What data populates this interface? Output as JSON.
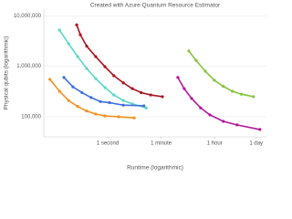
{
  "chart_data": {
    "type": "line",
    "title": "Created with Azure Quantum Resource Estimator",
    "x_label": "Runtime (logarithmic)",
    "y_label": "Physical qubits (logarithmic)",
    "x_scale": "log",
    "y_scale": "log",
    "xlim": [
      0.0075,
      190000
    ],
    "ylim": [
      40000,
      13500000
    ],
    "xticks": [
      {
        "value": 1,
        "label": "1 second"
      },
      {
        "value": 60,
        "label": "1 minute"
      },
      {
        "value": 3600,
        "label": "1 hour"
      },
      {
        "value": 86400,
        "label": "1 day"
      }
    ],
    "yticks": [
      {
        "value": 100000,
        "label": "100,000"
      },
      {
        "value": 1000000,
        "label": "1,000,000"
      },
      {
        "value": 10000000,
        "label": "10,000,000"
      }
    ],
    "grid": true,
    "series": [
      {
        "color": "#a8141e",
        "x": [
          0.093,
          0.123,
          0.2,
          0.4,
          0.81,
          1.6,
          3.3,
          6.6,
          13,
          27,
          66
        ],
        "values": [
          6600000,
          4200000,
          2500000,
          1550000,
          980000,
          650000,
          470000,
          360000,
          300000,
          270000,
          250000
        ]
      },
      {
        "color": "#5ad8c6",
        "x": [
          0.025,
          0.05,
          0.1,
          0.2,
          0.4,
          0.81,
          1.6,
          3.3,
          6.6,
          19
        ],
        "values": [
          5200000,
          2800000,
          1550000,
          900000,
          570000,
          380000,
          270000,
          210000,
          180000,
          150000
        ]
      },
      {
        "color": "#3f6fe0",
        "x": [
          0.035,
          0.07,
          0.14,
          0.28,
          0.57,
          1.15,
          3.3,
          16
        ],
        "values": [
          600000,
          390000,
          300000,
          240000,
          200000,
          190000,
          170000,
          165000
        ]
      },
      {
        "color": "#f5901e",
        "x": [
          0.012,
          0.025,
          0.05,
          0.1,
          0.2,
          0.4,
          0.81,
          2.3,
          7.6
        ],
        "values": [
          550000,
          320000,
          210000,
          160000,
          130000,
          113000,
          104000,
          100000,
          95000
        ]
      },
      {
        "color": "#86c43d",
        "x": [
          500,
          870,
          1750,
          3500,
          7000,
          14000,
          28000,
          70000
        ],
        "values": [
          2000000,
          1300000,
          800000,
          530000,
          400000,
          320000,
          280000,
          250000
        ]
      },
      {
        "color": "#b5179e",
        "x": [
          215,
          350,
          620,
          1230,
          2500,
          7000,
          20000,
          115000
        ],
        "values": [
          600000,
          360000,
          230000,
          150000,
          109000,
          81000,
          69000,
          56000
        ]
      }
    ]
  }
}
